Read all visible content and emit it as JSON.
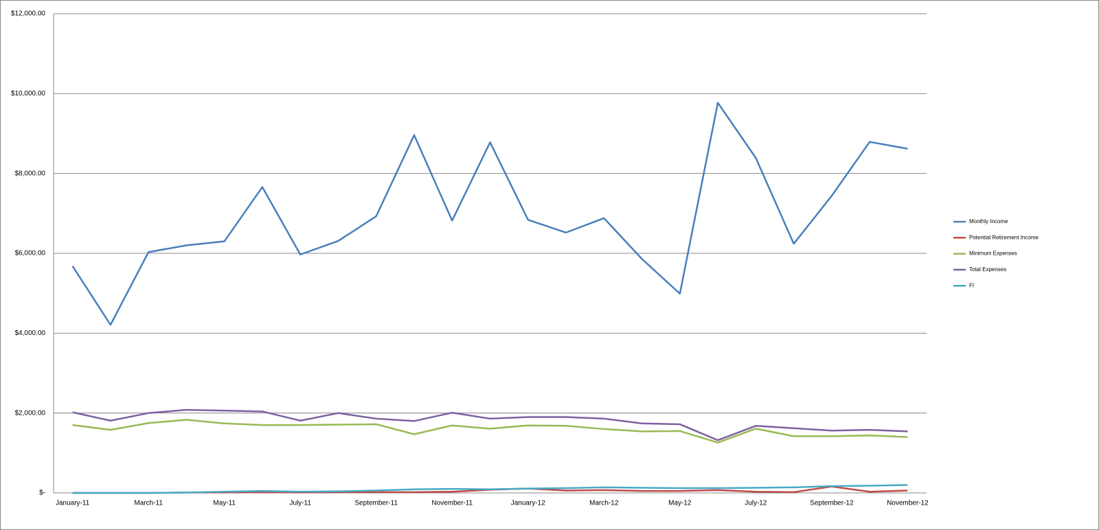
{
  "chart_data": {
    "type": "line",
    "categories": [
      "January-11",
      null,
      "March-11",
      null,
      "May-11",
      null,
      "July-11",
      null,
      "September-11",
      null,
      "November-11",
      null,
      "January-12",
      null,
      "March-12",
      null,
      "May-12",
      null,
      "July-12",
      null,
      "September-12",
      null,
      "November-12"
    ],
    "series": [
      {
        "name": "Monthly Income",
        "color": "#4a7ebb",
        "values": [
          5680,
          4210,
          6030,
          6200,
          6300,
          7660,
          5970,
          6310,
          6930,
          8960,
          6820,
          8780,
          6840,
          6520,
          6880,
          5860,
          4990,
          9770,
          8390,
          6240,
          7440,
          8790,
          8620
        ]
      },
      {
        "name": "Potential Retirement Income",
        "color": "#be4b48",
        "values": [
          0,
          0,
          0,
          10,
          10,
          20,
          10,
          20,
          20,
          20,
          30,
          80,
          110,
          60,
          70,
          50,
          50,
          70,
          30,
          20,
          160,
          30,
          60
        ]
      },
      {
        "name": "Minimum Expenses",
        "color": "#98b954",
        "values": [
          1700,
          1580,
          1750,
          1830,
          1740,
          1700,
          1700,
          1710,
          1720,
          1470,
          1690,
          1610,
          1690,
          1680,
          1600,
          1540,
          1550,
          1260,
          1610,
          1420,
          1420,
          1440,
          1400
        ]
      },
      {
        "name": "Total Expenses",
        "color": "#7d60a0",
        "values": [
          2020,
          1810,
          2000,
          2080,
          2060,
          2040,
          1810,
          2000,
          1860,
          1800,
          2010,
          1860,
          1900,
          1900,
          1860,
          1740,
          1720,
          1320,
          1680,
          1620,
          1560,
          1580,
          1540
        ]
      },
      {
        "name": "FI",
        "color": "#46aac5",
        "values": [
          0,
          0,
          0,
          10,
          30,
          50,
          30,
          40,
          60,
          90,
          100,
          90,
          110,
          120,
          140,
          130,
          120,
          120,
          130,
          140,
          170,
          180,
          200
        ]
      }
    ],
    "ylim": [
      0,
      12000
    ],
    "yticks": [
      {
        "value": 0,
        "label": "$-"
      },
      {
        "value": 2000,
        "label": "$2,000.00"
      },
      {
        "value": 4000,
        "label": "$4,000.00"
      },
      {
        "value": 6000,
        "label": "$6,000.00"
      },
      {
        "value": 8000,
        "label": "$8,000.00"
      },
      {
        "value": 10000,
        "label": "$10,000.00"
      },
      {
        "value": 12000,
        "label": "$12,000.00"
      }
    ],
    "grid": true,
    "legend": "right"
  }
}
